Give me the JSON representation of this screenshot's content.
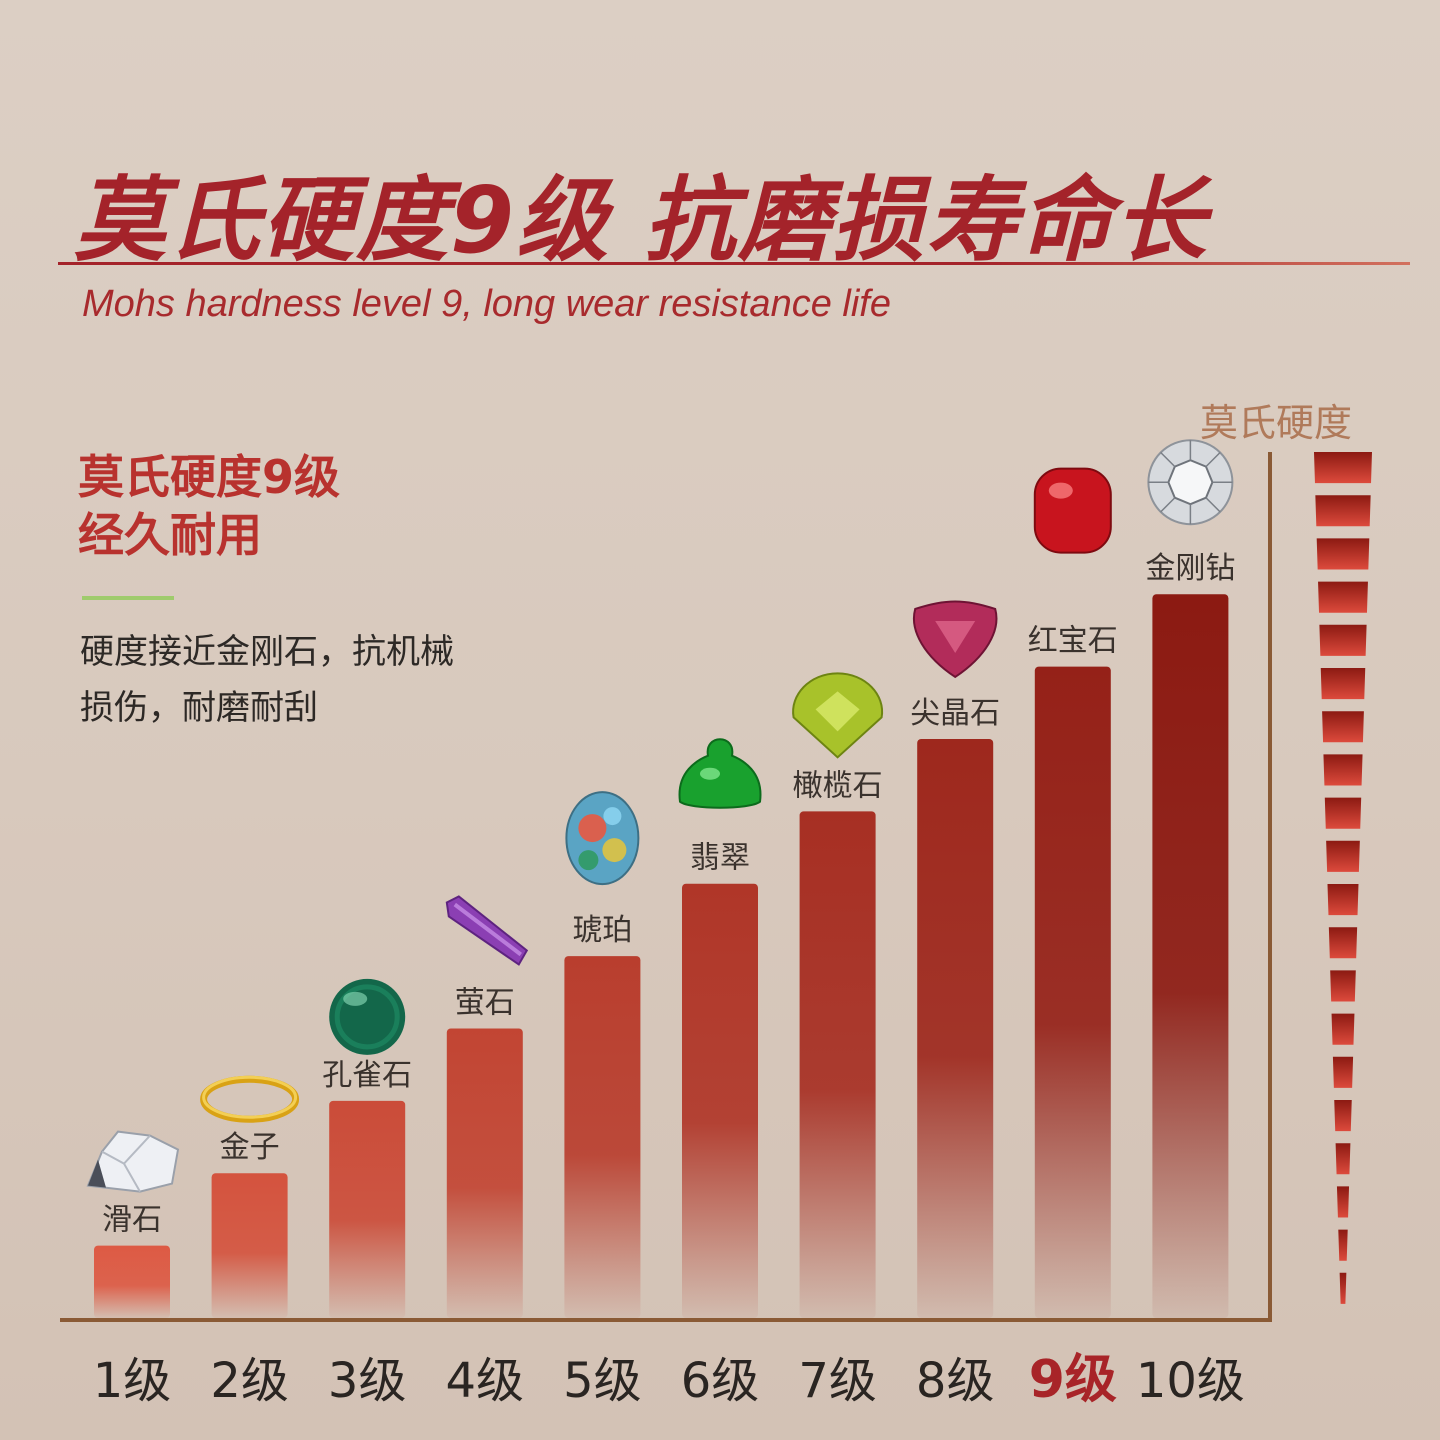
{
  "header": {
    "title": "莫氏硬度9级 抗磨损寿命长",
    "subtitle": "Mohs hardness level 9, long wear resistance life"
  },
  "info": {
    "headline_line1": "莫氏硬度9级",
    "headline_line2": "经久耐用",
    "desc_line1": "硬度接近金刚石，抗机械",
    "desc_line2": "损伤，耐磨耐刮"
  },
  "chart_data": {
    "type": "bar",
    "ylabel": "莫氏硬度",
    "ylim": [
      0,
      10.5
    ],
    "categories": [
      "1级",
      "2级",
      "3级",
      "4级",
      "5级",
      "6级",
      "7级",
      "8级",
      "9级",
      "10级"
    ],
    "values": [
      1,
      2,
      3,
      4,
      5,
      6,
      7,
      8,
      9,
      10
    ],
    "labels": [
      "滑石",
      "金子",
      "孔雀石",
      "萤石",
      "琥珀",
      "翡翠",
      "橄榄石",
      "尖晶石",
      "红宝石",
      "金刚钻"
    ],
    "highlight_category": "9级",
    "icons": [
      "talc-crystal-icon",
      "gold-ring-icon",
      "malachite-bead-icon",
      "fluorite-crystal-icon",
      "opal-cabochon-icon",
      "jade-buddha-icon",
      "peridot-gem-icon",
      "spinel-gem-icon",
      "ruby-cabochon-icon",
      "diamond-icon"
    ]
  },
  "colors": {
    "accent": "#a4232a",
    "bar_light": "#dd5a44",
    "bar_dark": "#8c1a12",
    "highlight_tick": "#a82428",
    "axis": "#8a5a35"
  }
}
